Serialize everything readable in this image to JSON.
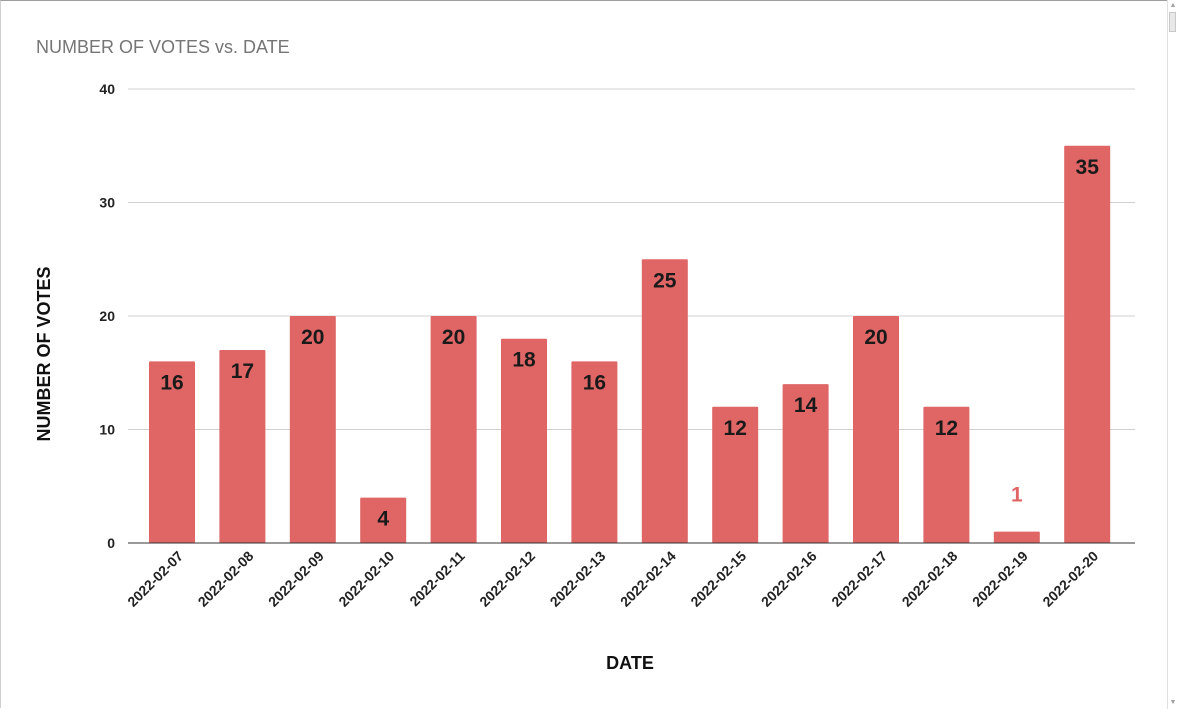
{
  "chart_data": {
    "type": "bar",
    "title": "NUMBER OF VOTES vs. DATE",
    "xlabel": "DATE",
    "ylabel": "NUMBER OF VOTES",
    "categories": [
      "2022-02-07",
      "2022-02-08",
      "2022-02-09",
      "2022-02-10",
      "2022-02-11",
      "2022-02-12",
      "2022-02-13",
      "2022-02-14",
      "2022-02-15",
      "2022-02-16",
      "2022-02-17",
      "2022-02-18",
      "2022-02-19",
      "2022-02-20"
    ],
    "values": [
      16,
      17,
      20,
      4,
      20,
      18,
      16,
      25,
      12,
      14,
      20,
      12,
      1,
      35
    ],
    "ylim": [
      0,
      40
    ],
    "yticks": [
      0,
      10,
      20,
      30,
      40
    ],
    "grid": true,
    "legend": "none",
    "bar_color": "#e06666",
    "data_labels": true
  }
}
